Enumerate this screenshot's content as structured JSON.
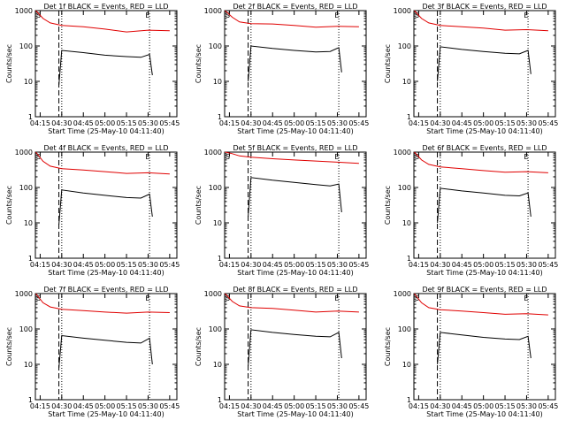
{
  "chart_data": [
    {
      "type": "line",
      "title": "Det 1f BLACK = Events, RED = LLD",
      "xlabel": "Start Time (25-May-10 04:11:40)",
      "ylabel": "Counts/sec",
      "x_ticks": [
        "04:15",
        "04:30",
        "04:45",
        "05:00",
        "05:15",
        "05:30",
        "05:45"
      ],
      "y_ticks": [
        "1",
        "10",
        "100",
        "1000"
      ],
      "ylim": [
        1,
        1000
      ],
      "log_y": true,
      "markers": [
        "S",
        "E"
      ],
      "series": [
        {
          "color": "#000000",
          "x": [
            "04:28",
            "04:30",
            "04:45",
            "05:00",
            "05:15",
            "05:25",
            "05:31",
            "05:33"
          ],
          "y": [
            8,
            75,
            65,
            55,
            50,
            48,
            58,
            15
          ]
        },
        {
          "color": "#e00000",
          "x": [
            "04:12",
            "04:17",
            "04:22",
            "04:30",
            "04:45",
            "05:00",
            "05:15",
            "05:30",
            "05:45"
          ],
          "y": [
            1000,
            600,
            450,
            380,
            350,
            300,
            250,
            280,
            270
          ]
        }
      ]
    },
    {
      "type": "line",
      "title": "Det 2f BLACK = Events, RED = LLD",
      "xlabel": "Start Time (25-May-10 04:11:40)",
      "ylabel": "Counts/sec",
      "x_ticks": [
        "04:15",
        "04:30",
        "04:45",
        "05:00",
        "05:15",
        "05:30",
        "05:45"
      ],
      "y_ticks": [
        "1",
        "10",
        "100",
        "1000"
      ],
      "ylim": [
        1,
        1000
      ],
      "log_y": true,
      "markers": [
        "S",
        "E"
      ],
      "series": [
        {
          "color": "#000000",
          "x": [
            "04:28",
            "04:30",
            "04:45",
            "05:00",
            "05:15",
            "05:25",
            "05:31",
            "05:33"
          ],
          "y": [
            10,
            100,
            85,
            75,
            68,
            70,
            90,
            18
          ]
        },
        {
          "color": "#e00000",
          "x": [
            "04:12",
            "04:17",
            "04:22",
            "04:30",
            "04:45",
            "05:00",
            "05:15",
            "05:30",
            "05:45"
          ],
          "y": [
            1000,
            650,
            480,
            430,
            420,
            380,
            340,
            360,
            350
          ]
        }
      ]
    },
    {
      "type": "line",
      "title": "Det 3f BLACK = Events, RED = LLD",
      "xlabel": "Start Time (25-May-10 04:11:40)",
      "ylabel": "Counts/sec",
      "x_ticks": [
        "04:15",
        "04:30",
        "04:45",
        "05:00",
        "05:15",
        "05:30",
        "05:45"
      ],
      "y_ticks": [
        "1",
        "10",
        "100",
        "1000"
      ],
      "ylim": [
        1,
        1000
      ],
      "log_y": true,
      "markers": [
        "S",
        "E"
      ],
      "series": [
        {
          "color": "#000000",
          "x": [
            "04:28",
            "04:30",
            "04:45",
            "05:00",
            "05:15",
            "05:25",
            "05:31",
            "05:33"
          ],
          "y": [
            10,
            95,
            80,
            70,
            62,
            60,
            75,
            16
          ]
        },
        {
          "color": "#e00000",
          "x": [
            "04:12",
            "04:17",
            "04:22",
            "04:30",
            "04:45",
            "05:00",
            "05:15",
            "05:30",
            "05:45"
          ],
          "y": [
            1000,
            600,
            450,
            380,
            350,
            320,
            280,
            290,
            270
          ]
        }
      ]
    },
    {
      "type": "line",
      "title": "Det 4f BLACK = Events, RED = LLD",
      "xlabel": "Start Time (25-May-10 04:11:40)",
      "ylabel": "Counts/sec",
      "x_ticks": [
        "04:15",
        "04:30",
        "04:45",
        "05:00",
        "05:15",
        "05:30",
        "05:45"
      ],
      "y_ticks": [
        "1",
        "10",
        "100",
        "1000"
      ],
      "ylim": [
        1,
        1000
      ],
      "log_y": true,
      "markers": [
        "S",
        "E"
      ],
      "series": [
        {
          "color": "#000000",
          "x": [
            "04:28",
            "04:30",
            "04:45",
            "05:00",
            "05:15",
            "05:25",
            "05:31",
            "05:33"
          ],
          "y": [
            9,
            85,
            70,
            60,
            52,
            50,
            65,
            15
          ]
        },
        {
          "color": "#e00000",
          "x": [
            "04:12",
            "04:17",
            "04:22",
            "04:30",
            "04:45",
            "05:00",
            "05:15",
            "05:30",
            "05:45"
          ],
          "y": [
            1000,
            550,
            400,
            340,
            310,
            280,
            250,
            260,
            240
          ]
        }
      ]
    },
    {
      "type": "line",
      "title": "Det 5f BLACK = Events, RED = LLD",
      "xlabel": "Start Time (25-May-10 04:11:40)",
      "ylabel": "Counts/sec",
      "x_ticks": [
        "04:15",
        "04:30",
        "04:45",
        "05:00",
        "05:15",
        "05:30",
        "05:45"
      ],
      "y_ticks": [
        "1",
        "10",
        "100",
        "1000"
      ],
      "ylim": [
        1,
        1000
      ],
      "log_y": true,
      "markers": [
        "S",
        "E"
      ],
      "series": [
        {
          "color": "#000000",
          "x": [
            "04:28",
            "04:30",
            "04:45",
            "05:00",
            "05:15",
            "05:25",
            "05:31",
            "05:33"
          ],
          "y": [
            15,
            190,
            160,
            140,
            120,
            110,
            125,
            20
          ]
        },
        {
          "color": "#e00000",
          "x": [
            "04:12",
            "04:17",
            "04:22",
            "04:30",
            "04:45",
            "05:00",
            "05:15",
            "05:30",
            "05:45"
          ],
          "y": [
            1000,
            900,
            780,
            720,
            650,
            600,
            560,
            520,
            480
          ]
        }
      ]
    },
    {
      "type": "line",
      "title": "Det 6f BLACK = Events, RED = LLD",
      "xlabel": "Start Time (25-May-10 04:11:40)",
      "ylabel": "Counts/sec",
      "x_ticks": [
        "04:15",
        "04:30",
        "04:45",
        "05:00",
        "05:15",
        "05:30",
        "05:45"
      ],
      "y_ticks": [
        "1",
        "10",
        "100",
        "1000"
      ],
      "ylim": [
        1,
        1000
      ],
      "log_y": true,
      "markers": [
        "S",
        "E"
      ],
      "series": [
        {
          "color": "#000000",
          "x": [
            "04:28",
            "04:30",
            "04:45",
            "05:00",
            "05:15",
            "05:25",
            "05:31",
            "05:33"
          ],
          "y": [
            10,
            95,
            80,
            70,
            60,
            58,
            70,
            15
          ]
        },
        {
          "color": "#e00000",
          "x": [
            "04:12",
            "04:17",
            "04:22",
            "04:30",
            "04:45",
            "05:00",
            "05:15",
            "05:30",
            "05:45"
          ],
          "y": [
            1000,
            600,
            450,
            380,
            340,
            300,
            270,
            280,
            260
          ]
        }
      ]
    },
    {
      "type": "line",
      "title": "Det 7f BLACK = Events, RED = LLD",
      "xlabel": "Start Time (25-May-10 04:11:40)",
      "ylabel": "Counts/sec",
      "x_ticks": [
        "04:15",
        "04:30",
        "04:45",
        "05:00",
        "05:15",
        "05:30",
        "05:45"
      ],
      "y_ticks": [
        "1",
        "10",
        "100",
        "1000"
      ],
      "ylim": [
        1,
        1000
      ],
      "log_y": true,
      "markers": [
        "S",
        "E"
      ],
      "series": [
        {
          "color": "#000000",
          "x": [
            "04:28",
            "04:30",
            "04:45",
            "05:00",
            "05:15",
            "05:25",
            "05:31",
            "05:33"
          ],
          "y": [
            8,
            65,
            55,
            48,
            42,
            40,
            55,
            10
          ]
        },
        {
          "color": "#e00000",
          "x": [
            "04:12",
            "04:17",
            "04:22",
            "04:30",
            "04:45",
            "05:00",
            "05:15",
            "05:30",
            "05:45"
          ],
          "y": [
            1000,
            550,
            420,
            360,
            330,
            300,
            280,
            300,
            290
          ]
        }
      ]
    },
    {
      "type": "line",
      "title": "Det 8f BLACK = Events, RED = LLD",
      "xlabel": "Start Time (25-May-10 04:11:40)",
      "ylabel": "Counts/sec",
      "x_ticks": [
        "04:15",
        "04:30",
        "04:45",
        "05:00",
        "05:15",
        "05:30",
        "05:45"
      ],
      "y_ticks": [
        "1",
        "10",
        "100",
        "1000"
      ],
      "ylim": [
        1,
        1000
      ],
      "log_y": true,
      "markers": [
        "S",
        "E"
      ],
      "series": [
        {
          "color": "#000000",
          "x": [
            "04:28",
            "04:30",
            "04:45",
            "05:00",
            "05:15",
            "05:25",
            "05:31",
            "05:33"
          ],
          "y": [
            9,
            95,
            80,
            70,
            62,
            60,
            80,
            15
          ]
        },
        {
          "color": "#e00000",
          "x": [
            "04:12",
            "04:17",
            "04:22",
            "04:30",
            "04:45",
            "05:00",
            "05:15",
            "05:30",
            "05:45"
          ],
          "y": [
            1000,
            600,
            450,
            400,
            380,
            340,
            300,
            320,
            300
          ]
        }
      ]
    },
    {
      "type": "line",
      "title": "Det 9f BLACK = Events, RED = LLD",
      "xlabel": "Start Time (25-May-10 04:11:40)",
      "ylabel": "Counts/sec",
      "x_ticks": [
        "04:15",
        "04:30",
        "04:45",
        "05:00",
        "05:15",
        "05:30",
        "05:45"
      ],
      "y_ticks": [
        "1",
        "10",
        "100",
        "1000"
      ],
      "ylim": [
        1,
        1000
      ],
      "log_y": true,
      "markers": [
        "S",
        "E"
      ],
      "series": [
        {
          "color": "#000000",
          "x": [
            "04:28",
            "04:30",
            "04:45",
            "05:00",
            "05:15",
            "05:25",
            "05:31",
            "05:33"
          ],
          "y": [
            10,
            80,
            68,
            58,
            52,
            50,
            62,
            15
          ]
        },
        {
          "color": "#e00000",
          "x": [
            "04:12",
            "04:17",
            "04:22",
            "04:30",
            "04:45",
            "05:00",
            "05:15",
            "05:30",
            "05:45"
          ],
          "y": [
            1000,
            550,
            400,
            350,
            320,
            290,
            260,
            270,
            250
          ]
        }
      ]
    }
  ]
}
